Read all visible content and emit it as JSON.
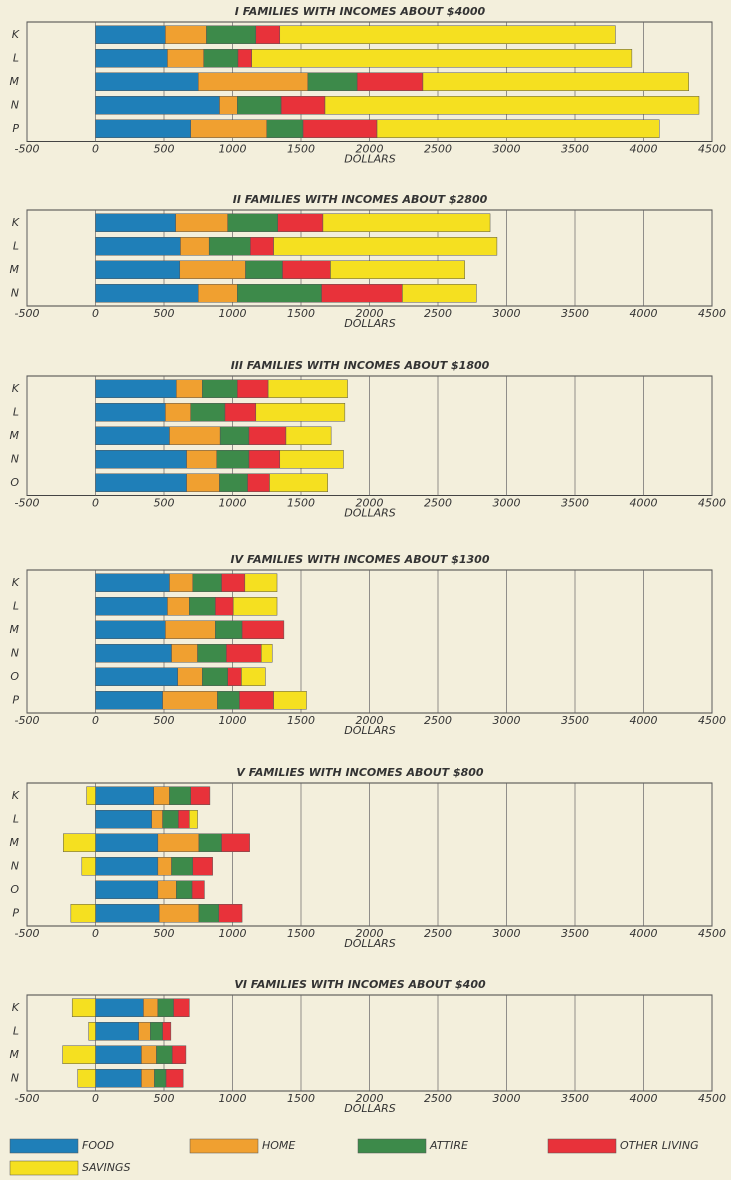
{
  "chart_data": [
    {
      "type": "bar",
      "title": "I FAMILIES WITH INCOMES ABOUT $4000",
      "xlabel": "DOLLARS",
      "categories": [
        "K",
        "L",
        "M",
        "N",
        "P"
      ],
      "series": [
        {
          "name": "FOOD",
          "color": "#1f7fb8",
          "values": [
            510,
            525,
            750,
            905,
            695
          ]
        },
        {
          "name": "HOME",
          "color": "#f0a030",
          "values": [
            300,
            265,
            800,
            130,
            555
          ]
        },
        {
          "name": "ATTIRE",
          "color": "#3d8a4a",
          "values": [
            360,
            250,
            360,
            320,
            265
          ]
        },
        {
          "name": "OTHER LIVING",
          "color": "#e8323a",
          "values": [
            175,
            100,
            480,
            320,
            540
          ]
        },
        {
          "name": "SAVINGS",
          "color": "#f5e020",
          "values": [
            2450,
            2775,
            1940,
            2730,
            2060
          ]
        }
      ],
      "xlim": [
        -500,
        4500
      ],
      "xticks": [
        -500,
        0,
        500,
        1000,
        1500,
        2000,
        2500,
        3000,
        3500,
        4000,
        4500
      ],
      "grid": true
    },
    {
      "type": "bar",
      "title": "II FAMILIES WITH INCOMES ABOUT $2800",
      "xlabel": "DOLLARS",
      "categories": [
        "K",
        "L",
        "M",
        "N"
      ],
      "series": [
        {
          "name": "FOOD",
          "color": "#1f7fb8",
          "values": [
            585,
            620,
            615,
            750
          ]
        },
        {
          "name": "HOME",
          "color": "#f0a030",
          "values": [
            380,
            210,
            480,
            285
          ]
        },
        {
          "name": "ATTIRE",
          "color": "#3d8a4a",
          "values": [
            365,
            300,
            270,
            615
          ]
        },
        {
          "name": "OTHER LIVING",
          "color": "#e8323a",
          "values": [
            330,
            170,
            350,
            590
          ]
        },
        {
          "name": "SAVINGS",
          "color": "#f5e020",
          "values": [
            1220,
            1630,
            980,
            540
          ]
        }
      ],
      "xlim": [
        -500,
        4500
      ],
      "xticks": [
        -500,
        0,
        500,
        1000,
        1500,
        2000,
        2500,
        3000,
        3500,
        4000,
        4500
      ],
      "grid": true
    },
    {
      "type": "bar",
      "title": "III FAMILIES WITH INCOMES ABOUT $1800",
      "xlabel": "DOLLARS",
      "categories": [
        "K",
        "L",
        "M",
        "N",
        "O"
      ],
      "series": [
        {
          "name": "FOOD",
          "color": "#1f7fb8",
          "values": [
            590,
            510,
            540,
            665,
            665
          ]
        },
        {
          "name": "HOME",
          "color": "#f0a030",
          "values": [
            190,
            185,
            370,
            220,
            240
          ]
        },
        {
          "name": "ATTIRE",
          "color": "#3d8a4a",
          "values": [
            255,
            250,
            210,
            235,
            205
          ]
        },
        {
          "name": "OTHER LIVING",
          "color": "#e8323a",
          "values": [
            225,
            225,
            270,
            225,
            160
          ]
        },
        {
          "name": "SAVINGS",
          "color": "#f5e020",
          "values": [
            580,
            650,
            330,
            465,
            425
          ]
        }
      ],
      "xlim": [
        -500,
        4500
      ],
      "xticks": [
        -500,
        0,
        500,
        1000,
        1500,
        2000,
        2500,
        3000,
        3500,
        4000,
        4500
      ],
      "grid": true
    },
    {
      "type": "bar",
      "title": "IV FAMILIES WITH INCOMES ABOUT $1300",
      "xlabel": "DOLLARS",
      "categories": [
        "K",
        "L",
        "M",
        "N",
        "O",
        "P"
      ],
      "series": [
        {
          "name": "FOOD",
          "color": "#1f7fb8",
          "values": [
            540,
            525,
            510,
            555,
            600,
            490
          ]
        },
        {
          "name": "HOME",
          "color": "#f0a030",
          "values": [
            170,
            160,
            365,
            190,
            180,
            400
          ]
        },
        {
          "name": "ATTIRE",
          "color": "#3d8a4a",
          "values": [
            210,
            190,
            195,
            210,
            185,
            160
          ]
        },
        {
          "name": "OTHER LIVING",
          "color": "#e8323a",
          "values": [
            170,
            130,
            305,
            255,
            100,
            250
          ]
        },
        {
          "name": "SAVINGS",
          "color": "#f5e020",
          "values": [
            235,
            320,
            0,
            80,
            175,
            240
          ]
        }
      ],
      "xlim": [
        -500,
        4500
      ],
      "xticks": [
        -500,
        0,
        500,
        1000,
        1500,
        2000,
        2500,
        3000,
        3500,
        4000,
        4500
      ],
      "grid": true
    },
    {
      "type": "bar",
      "title": "V FAMILIES WITH INCOMES ABOUT $800",
      "xlabel": "DOLLARS",
      "categories": [
        "K",
        "L",
        "M",
        "N",
        "O",
        "P"
      ],
      "series": [
        {
          "name": "FOOD",
          "color": "#1f7fb8",
          "values": [
            425,
            410,
            455,
            455,
            455,
            465
          ]
        },
        {
          "name": "HOME",
          "color": "#f0a030",
          "values": [
            115,
            80,
            300,
            100,
            135,
            290
          ]
        },
        {
          "name": "ATTIRE",
          "color": "#3d8a4a",
          "values": [
            155,
            115,
            165,
            155,
            115,
            145
          ]
        },
        {
          "name": "OTHER LIVING",
          "color": "#e8323a",
          "values": [
            140,
            80,
            205,
            145,
            90,
            170
          ]
        },
        {
          "name": "SAVINGS",
          "color": "#f5e020",
          "values": [
            -65,
            60,
            -235,
            -100,
            0,
            -180
          ]
        }
      ],
      "xlim": [
        -500,
        4500
      ],
      "xticks": [
        -500,
        0,
        500,
        1000,
        1500,
        2000,
        2500,
        3000,
        3500,
        4000,
        4500
      ],
      "grid": true
    },
    {
      "type": "bar",
      "title": "VI FAMILIES WITH INCOMES ABOUT $400",
      "xlabel": "DOLLARS",
      "categories": [
        "K",
        "L",
        "M",
        "N"
      ],
      "series": [
        {
          "name": "FOOD",
          "color": "#1f7fb8",
          "values": [
            350,
            315,
            335,
            335
          ]
        },
        {
          "name": "HOME",
          "color": "#f0a030",
          "values": [
            105,
            85,
            110,
            95
          ]
        },
        {
          "name": "ATTIRE",
          "color": "#3d8a4a",
          "values": [
            115,
            90,
            115,
            85
          ]
        },
        {
          "name": "OTHER LIVING",
          "color": "#e8323a",
          "values": [
            115,
            60,
            100,
            125
          ]
        },
        {
          "name": "SAVINGS",
          "color": "#f5e020",
          "values": [
            -170,
            -50,
            -240,
            -130
          ]
        }
      ],
      "xlim": [
        -500,
        4500
      ],
      "xticks": [
        -500,
        0,
        500,
        1000,
        1500,
        2000,
        2500,
        3000,
        3500,
        4000,
        4500
      ],
      "grid": true
    }
  ]
}
